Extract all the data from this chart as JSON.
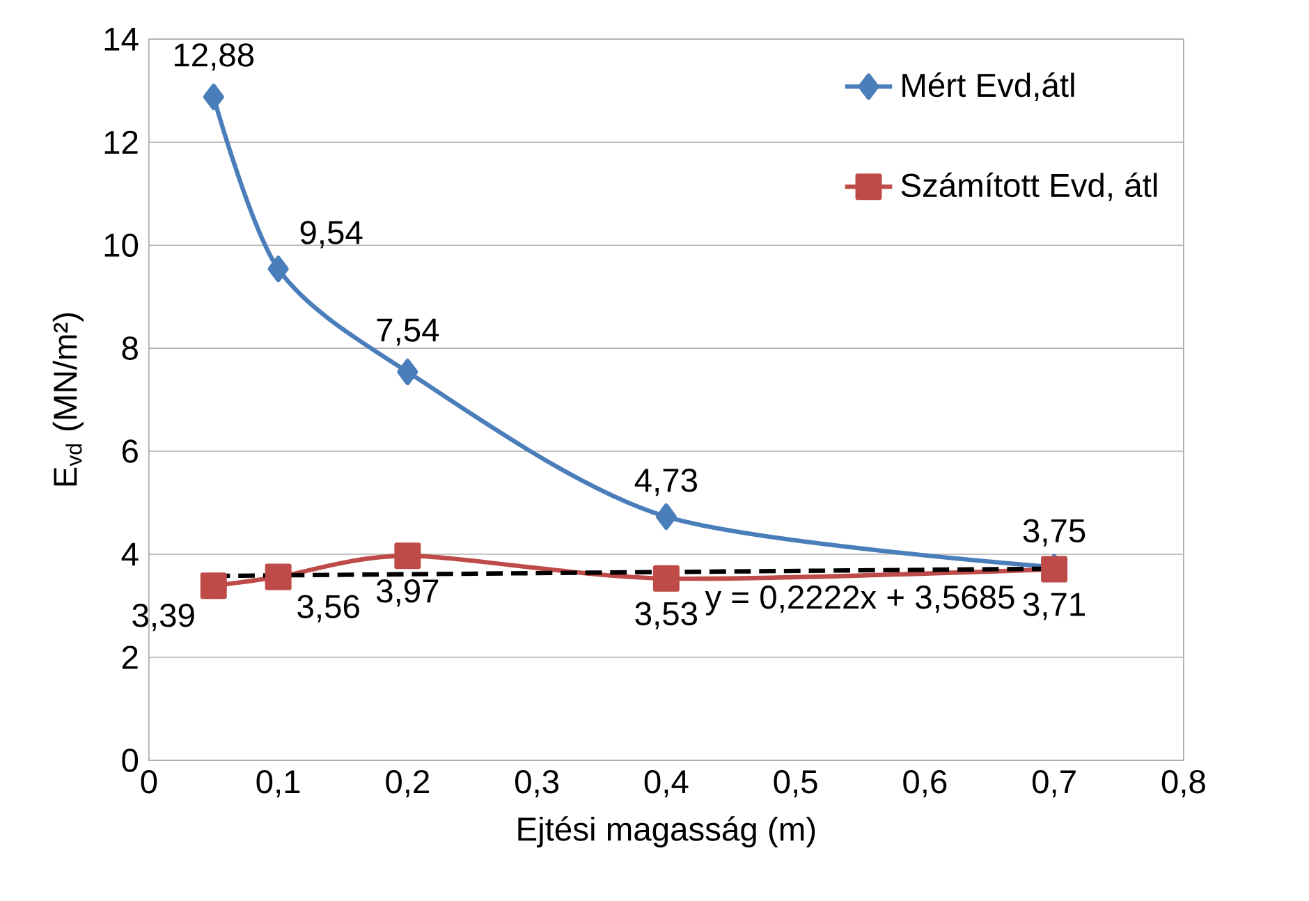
{
  "chart_data": {
    "type": "line",
    "xlabel": "Ejtési magasság (m)",
    "ylabel": "E$_{vd}$ (MN/m²)",
    "xlim": [
      0,
      0.8
    ],
    "ylim": [
      0,
      14
    ],
    "xticks": [
      0,
      {
        "value": 0.1,
        "label": "0,1"
      },
      {
        "value": 0.2,
        "label": "0,2"
      },
      {
        "value": 0.3,
        "label": "0,3"
      },
      {
        "value": 0.4,
        "label": "0,4"
      },
      {
        "value": 0.5,
        "label": "0,5"
      },
      {
        "value": 0.6,
        "label": "0,6"
      },
      {
        "value": 0.7,
        "label": "0,7"
      },
      {
        "value": 0.8,
        "label": "0,8"
      }
    ],
    "yticks": [
      0,
      2,
      4,
      6,
      8,
      10,
      12,
      14
    ],
    "grid": "y",
    "legend": "top right",
    "series": [
      {
        "name": "Mért Evd,átl",
        "color": "#4a7ebb",
        "marker": "diamond",
        "x": [
          0.05,
          0.1,
          0.2,
          0.4,
          0.7
        ],
        "values": [
          12.88,
          9.54,
          7.54,
          4.73,
          3.75
        ],
        "value_labels": [
          "12,88",
          "9,54",
          "7,54",
          "4,73",
          "3,75"
        ]
      },
      {
        "name": "Számított Evd, átl",
        "color": "#be4b48",
        "marker": "square",
        "x": [
          0.05,
          0.1,
          0.2,
          0.4,
          0.7
        ],
        "values": [
          3.39,
          3.56,
          3.97,
          3.53,
          3.71
        ],
        "value_labels": [
          "3,39",
          "3,56",
          "3,97",
          "3,53",
          "3,71"
        ]
      },
      {
        "color": "#000000",
        "marker": "none",
        "line_style": "dashed",
        "x": [
          0.05,
          0.7
        ],
        "values": [
          3.58,
          3.72
        ]
      }
    ],
    "annotations": [
      {
        "text": "y = 0,2222x + 3,5685",
        "x": 0.55,
        "y": 3.69
      }
    ]
  }
}
